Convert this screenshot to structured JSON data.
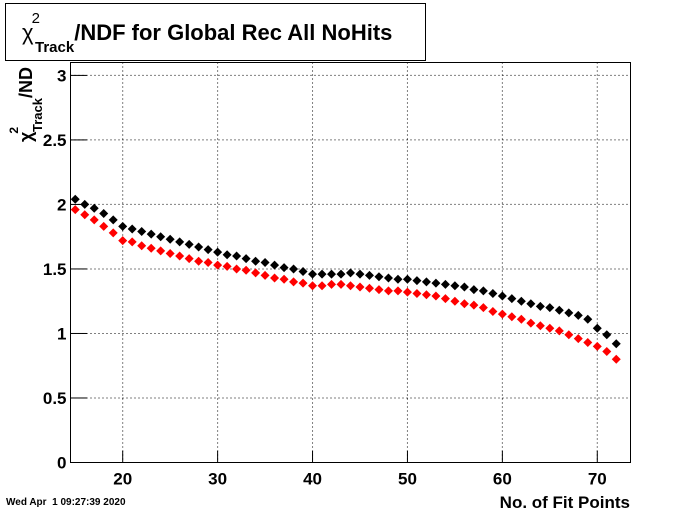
{
  "chart_data": {
    "type": "scatter",
    "title": {
      "symbol": "χ",
      "sup": "2",
      "sub": "Track",
      "text": "/NDF for Global Rec All NoHits"
    },
    "y_label": {
      "symbol": "χ",
      "sup": "2",
      "sub": "Track",
      "text": "/ND"
    },
    "x_label": "No. of Fit Points",
    "footer": "Wed Apr  1 09:27:39 2020",
    "xlim": [
      14.5,
      73.5
    ],
    "ylim": [
      0,
      3.1
    ],
    "xticks": [
      20,
      30,
      40,
      50,
      60,
      70
    ],
    "yticks": [
      0,
      0.5,
      1,
      1.5,
      2,
      2.5,
      3
    ],
    "grid": true,
    "x": [
      15,
      16,
      17,
      18,
      19,
      20,
      21,
      22,
      23,
      24,
      25,
      26,
      27,
      28,
      29,
      30,
      31,
      32,
      33,
      34,
      35,
      36,
      37,
      38,
      39,
      40,
      41,
      42,
      43,
      44,
      45,
      46,
      47,
      48,
      49,
      50,
      51,
      52,
      53,
      54,
      55,
      56,
      57,
      58,
      59,
      60,
      61,
      62,
      63,
      64,
      65,
      66,
      67,
      68,
      69,
      70,
      71,
      72
    ],
    "series": [
      {
        "color": "#000000",
        "values": [
          2.04,
          2.0,
          1.97,
          1.93,
          1.88,
          1.83,
          1.81,
          1.79,
          1.77,
          1.75,
          1.73,
          1.71,
          1.69,
          1.67,
          1.65,
          1.63,
          1.61,
          1.6,
          1.58,
          1.56,
          1.55,
          1.53,
          1.51,
          1.5,
          1.48,
          1.46,
          1.46,
          1.46,
          1.46,
          1.47,
          1.46,
          1.45,
          1.44,
          1.43,
          1.42,
          1.42,
          1.41,
          1.4,
          1.39,
          1.38,
          1.37,
          1.36,
          1.34,
          1.33,
          1.31,
          1.29,
          1.27,
          1.25,
          1.23,
          1.21,
          1.2,
          1.18,
          1.16,
          1.14,
          1.11,
          1.04,
          0.99,
          0.92
        ]
      },
      {
        "color": "#ff0000",
        "values": [
          1.96,
          1.92,
          1.88,
          1.83,
          1.78,
          1.72,
          1.71,
          1.68,
          1.66,
          1.64,
          1.62,
          1.6,
          1.58,
          1.56,
          1.55,
          1.53,
          1.52,
          1.5,
          1.49,
          1.47,
          1.45,
          1.43,
          1.42,
          1.4,
          1.39,
          1.37,
          1.37,
          1.38,
          1.38,
          1.37,
          1.36,
          1.35,
          1.34,
          1.33,
          1.33,
          1.32,
          1.31,
          1.3,
          1.29,
          1.27,
          1.25,
          1.23,
          1.22,
          1.2,
          1.17,
          1.15,
          1.13,
          1.11,
          1.08,
          1.06,
          1.04,
          1.02,
          0.99,
          0.96,
          0.93,
          0.9,
          0.86,
          0.8
        ]
      }
    ]
  }
}
